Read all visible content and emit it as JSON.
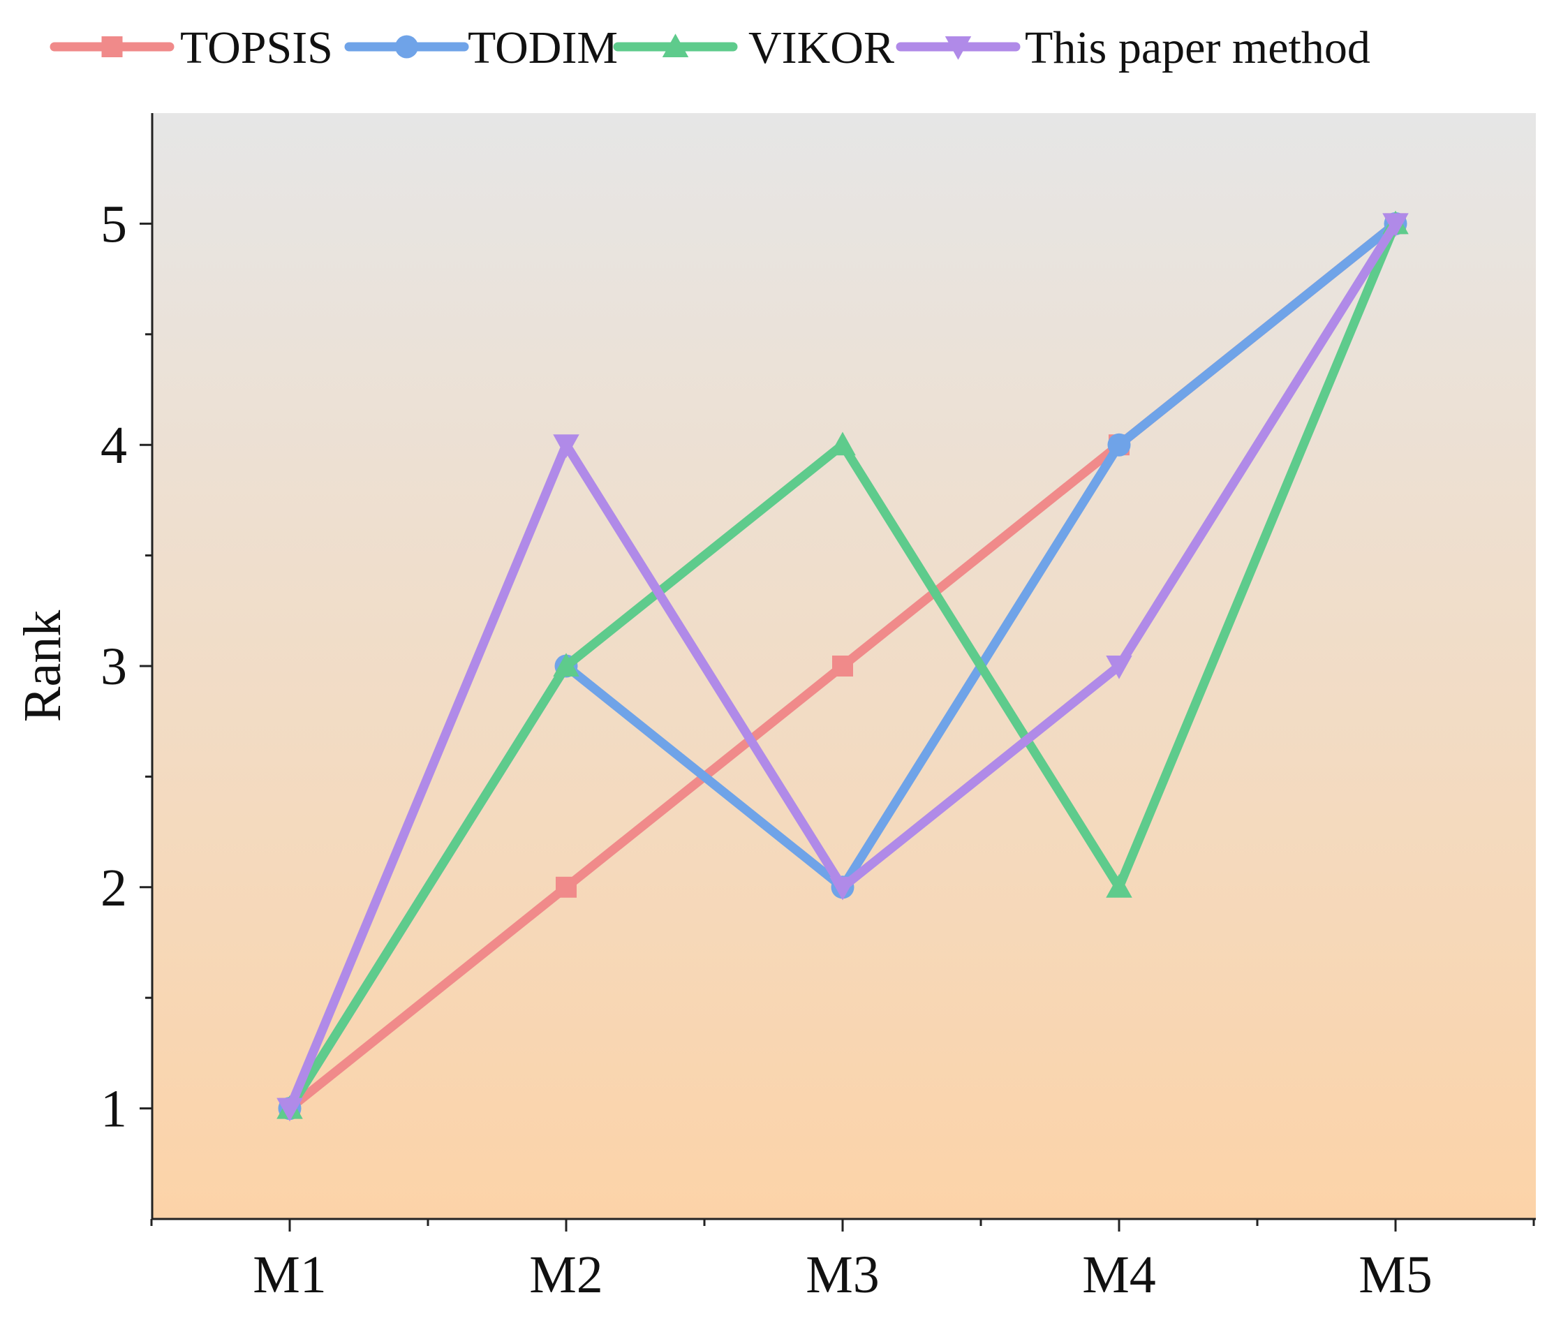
{
  "chart_data": {
    "type": "line",
    "title": "",
    "xlabel": "",
    "ylabel": "Rank",
    "categories": [
      "M1",
      "M2",
      "M3",
      "M4",
      "M5"
    ],
    "ylim": [
      0.5,
      5.5
    ],
    "yticks": [
      1,
      2,
      3,
      4,
      5
    ],
    "grid": false,
    "legend_position": "top",
    "background": "vertical gradient, light gray at top to peach-orange at bottom",
    "series": [
      {
        "name": "TOPSIS",
        "color": "#f08a8a",
        "marker": "square",
        "values": [
          1,
          2,
          3,
          4,
          5
        ]
      },
      {
        "name": "TODIM",
        "color": "#6fa3e8",
        "marker": "circle",
        "values": [
          1,
          3,
          2,
          4,
          5
        ]
      },
      {
        "name": "VIKOR",
        "color": "#5ecb8c",
        "marker": "triangle-up",
        "values": [
          1,
          3,
          4,
          2,
          5
        ]
      },
      {
        "name": "This paper method",
        "color": "#b08ae8",
        "marker": "triangle-down",
        "values": [
          1,
          4,
          2,
          3,
          5
        ]
      }
    ]
  }
}
